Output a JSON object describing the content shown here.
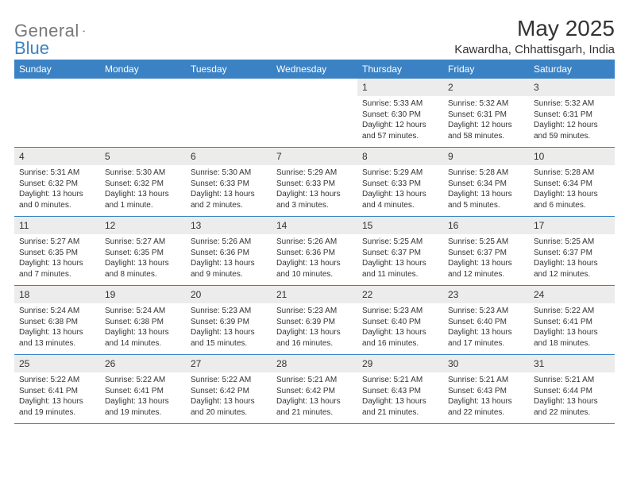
{
  "logo": {
    "text1": "General",
    "text2": "Blue"
  },
  "title": "May 2025",
  "location": "Kawardha, Chhattisgarh, India",
  "colors": {
    "header_bg": "#3b82c4",
    "daynum_bg": "#ececec",
    "text": "#333333",
    "logo_gray": "#77787b",
    "logo_blue": "#3b82c4"
  },
  "weekdays": [
    "Sunday",
    "Monday",
    "Tuesday",
    "Wednesday",
    "Thursday",
    "Friday",
    "Saturday"
  ],
  "weeks": [
    [
      {
        "empty": true
      },
      {
        "empty": true
      },
      {
        "empty": true
      },
      {
        "empty": true
      },
      {
        "n": "1",
        "sr": "5:33 AM",
        "ss": "6:30 PM",
        "dl": "12 hours and 57 minutes."
      },
      {
        "n": "2",
        "sr": "5:32 AM",
        "ss": "6:31 PM",
        "dl": "12 hours and 58 minutes."
      },
      {
        "n": "3",
        "sr": "5:32 AM",
        "ss": "6:31 PM",
        "dl": "12 hours and 59 minutes."
      }
    ],
    [
      {
        "n": "4",
        "sr": "5:31 AM",
        "ss": "6:32 PM",
        "dl": "13 hours and 0 minutes."
      },
      {
        "n": "5",
        "sr": "5:30 AM",
        "ss": "6:32 PM",
        "dl": "13 hours and 1 minute."
      },
      {
        "n": "6",
        "sr": "5:30 AM",
        "ss": "6:33 PM",
        "dl": "13 hours and 2 minutes."
      },
      {
        "n": "7",
        "sr": "5:29 AM",
        "ss": "6:33 PM",
        "dl": "13 hours and 3 minutes."
      },
      {
        "n": "8",
        "sr": "5:29 AM",
        "ss": "6:33 PM",
        "dl": "13 hours and 4 minutes."
      },
      {
        "n": "9",
        "sr": "5:28 AM",
        "ss": "6:34 PM",
        "dl": "13 hours and 5 minutes."
      },
      {
        "n": "10",
        "sr": "5:28 AM",
        "ss": "6:34 PM",
        "dl": "13 hours and 6 minutes."
      }
    ],
    [
      {
        "n": "11",
        "sr": "5:27 AM",
        "ss": "6:35 PM",
        "dl": "13 hours and 7 minutes."
      },
      {
        "n": "12",
        "sr": "5:27 AM",
        "ss": "6:35 PM",
        "dl": "13 hours and 8 minutes."
      },
      {
        "n": "13",
        "sr": "5:26 AM",
        "ss": "6:36 PM",
        "dl": "13 hours and 9 minutes."
      },
      {
        "n": "14",
        "sr": "5:26 AM",
        "ss": "6:36 PM",
        "dl": "13 hours and 10 minutes."
      },
      {
        "n": "15",
        "sr": "5:25 AM",
        "ss": "6:37 PM",
        "dl": "13 hours and 11 minutes."
      },
      {
        "n": "16",
        "sr": "5:25 AM",
        "ss": "6:37 PM",
        "dl": "13 hours and 12 minutes."
      },
      {
        "n": "17",
        "sr": "5:25 AM",
        "ss": "6:37 PM",
        "dl": "13 hours and 12 minutes."
      }
    ],
    [
      {
        "n": "18",
        "sr": "5:24 AM",
        "ss": "6:38 PM",
        "dl": "13 hours and 13 minutes."
      },
      {
        "n": "19",
        "sr": "5:24 AM",
        "ss": "6:38 PM",
        "dl": "13 hours and 14 minutes."
      },
      {
        "n": "20",
        "sr": "5:23 AM",
        "ss": "6:39 PM",
        "dl": "13 hours and 15 minutes."
      },
      {
        "n": "21",
        "sr": "5:23 AM",
        "ss": "6:39 PM",
        "dl": "13 hours and 16 minutes."
      },
      {
        "n": "22",
        "sr": "5:23 AM",
        "ss": "6:40 PM",
        "dl": "13 hours and 16 minutes."
      },
      {
        "n": "23",
        "sr": "5:23 AM",
        "ss": "6:40 PM",
        "dl": "13 hours and 17 minutes."
      },
      {
        "n": "24",
        "sr": "5:22 AM",
        "ss": "6:41 PM",
        "dl": "13 hours and 18 minutes."
      }
    ],
    [
      {
        "n": "25",
        "sr": "5:22 AM",
        "ss": "6:41 PM",
        "dl": "13 hours and 19 minutes."
      },
      {
        "n": "26",
        "sr": "5:22 AM",
        "ss": "6:41 PM",
        "dl": "13 hours and 19 minutes."
      },
      {
        "n": "27",
        "sr": "5:22 AM",
        "ss": "6:42 PM",
        "dl": "13 hours and 20 minutes."
      },
      {
        "n": "28",
        "sr": "5:21 AM",
        "ss": "6:42 PM",
        "dl": "13 hours and 21 minutes."
      },
      {
        "n": "29",
        "sr": "5:21 AM",
        "ss": "6:43 PM",
        "dl": "13 hours and 21 minutes."
      },
      {
        "n": "30",
        "sr": "5:21 AM",
        "ss": "6:43 PM",
        "dl": "13 hours and 22 minutes."
      },
      {
        "n": "31",
        "sr": "5:21 AM",
        "ss": "6:44 PM",
        "dl": "13 hours and 22 minutes."
      }
    ]
  ],
  "labels": {
    "sunrise": "Sunrise: ",
    "sunset": "Sunset: ",
    "daylight": "Daylight: "
  }
}
